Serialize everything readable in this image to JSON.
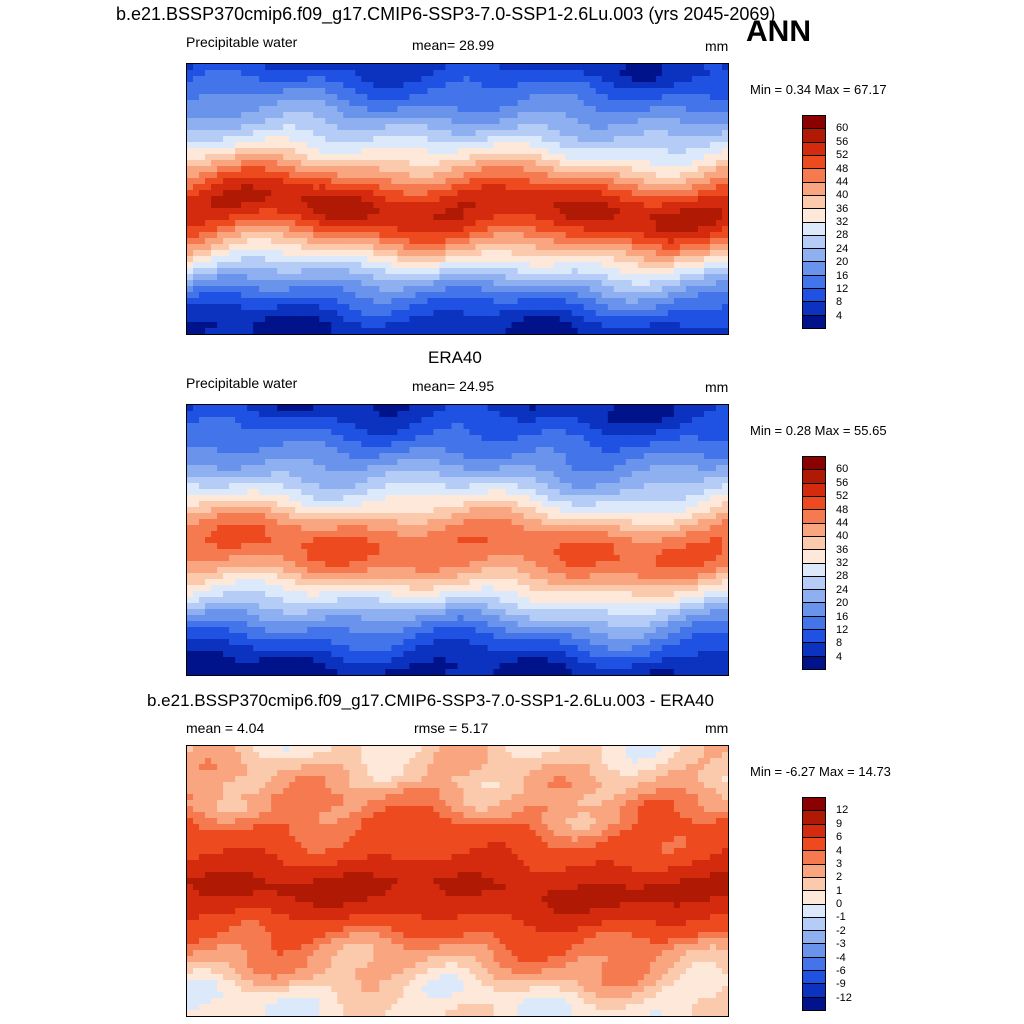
{
  "figure": {
    "title": "b.e21.BSSP370cmip6.f09_g17.CMIP6-SSP3-7.0-SSP1-2.6Lu.003 (yrs 2045-2069)",
    "season": "ANN"
  },
  "chart_data": [
    {
      "type": "heatmap",
      "title": "b.e21.BSSP370cmip6.f09_g17.CMIP6-SSP3-7.0-SSP1-2.6Lu.003 (yrs 2045-2069)",
      "left_label": "Precipitable water",
      "center_label": "mean=  28.99",
      "units": "mm",
      "minmax": "Min =   0.34 Max =  67.17",
      "mean": 28.99,
      "min": 0.34,
      "max": 67.17,
      "colorbar_levels": [
        "60",
        "56",
        "52",
        "48",
        "44",
        "40",
        "36",
        "32",
        "28",
        "24",
        "20",
        "16",
        "12",
        "8",
        "4"
      ],
      "colorbar_colors": [
        "#8b0000",
        "#b01a05",
        "#d42b0e",
        "#ee4a20",
        "#f67a4f",
        "#f9a580",
        "#fbc9ac",
        "#fde8da",
        "#dce9fb",
        "#b5cdf6",
        "#8eb0f0",
        "#6a94ec",
        "#4374ea",
        "#1f52e2",
        "#0b33c0",
        "#00138a"
      ],
      "row_profile": [
        6,
        10,
        13,
        16,
        20,
        24,
        29,
        34,
        40,
        46,
        52,
        56,
        55,
        50,
        43,
        36,
        29,
        22,
        16,
        11,
        7,
        4
      ]
    },
    {
      "type": "heatmap",
      "title": "ERA40",
      "left_label": "Precipitable water",
      "center_label": "mean=  24.95",
      "units": "mm",
      "minmax": "Min =   0.28 Max =  55.65",
      "mean": 24.95,
      "min": 0.28,
      "max": 55.65,
      "colorbar_levels": [
        "60",
        "56",
        "52",
        "48",
        "44",
        "40",
        "36",
        "32",
        "28",
        "24",
        "20",
        "16",
        "12",
        "8",
        "4"
      ],
      "colorbar_colors": [
        "#8b0000",
        "#b01a05",
        "#d42b0e",
        "#ee4a20",
        "#f67a4f",
        "#f9a580",
        "#fbc9ac",
        "#fde8da",
        "#dce9fb",
        "#b5cdf6",
        "#8eb0f0",
        "#6a94ec",
        "#4374ea",
        "#1f52e2",
        "#0b33c0",
        "#00138a"
      ],
      "row_profile": [
        5,
        8,
        11,
        14,
        17,
        21,
        25,
        30,
        35,
        41,
        46,
        48,
        47,
        43,
        37,
        31,
        25,
        19,
        14,
        10,
        6,
        3
      ]
    },
    {
      "type": "heatmap",
      "title": "b.e21.BSSP370cmip6.f09_g17.CMIP6-SSP3-7.0-SSP1-2.6Lu.003 - ERA40",
      "left_label": "mean =   4.04",
      "center_label": "rmse =   5.17",
      "units": "mm",
      "minmax": "Min =  -6.27 Max =  14.73",
      "mean": 4.04,
      "rmse": 5.17,
      "min": -6.27,
      "max": 14.73,
      "colorbar_levels": [
        "12",
        "9",
        "6",
        "4",
        "3",
        "2",
        "1",
        "0",
        "-1",
        "-2",
        "-3",
        "-4",
        "-6",
        "-9",
        "-12"
      ],
      "colorbar_colors": [
        "#8b0000",
        "#b01a05",
        "#d42b0e",
        "#ee4a20",
        "#f67a4f",
        "#f9a580",
        "#fbc9ac",
        "#fde8da",
        "#dce9fb",
        "#b5cdf6",
        "#8eb0f0",
        "#6a94ec",
        "#4374ea",
        "#1f52e2",
        "#0b33c0",
        "#00138a"
      ],
      "row_profile": [
        1,
        1.5,
        2,
        2,
        3,
        3,
        4,
        4.5,
        5,
        6,
        8,
        10,
        9,
        7,
        5,
        4,
        3,
        2.5,
        2,
        1,
        0.5,
        0.5
      ]
    }
  ]
}
